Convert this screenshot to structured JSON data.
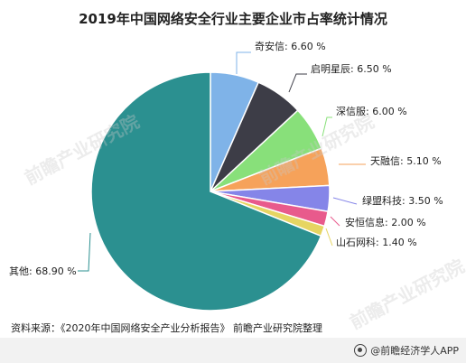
{
  "title": "2019年中国网络安全行业主要企业市占率统计情况",
  "source": "资料来源：《2020年中国网络安全产业分析报告》 前瞻产业研究院整理",
  "brand": "@前瞻经济学人APP",
  "watermark": "前瞻产业研究院",
  "chart_data": {
    "type": "pie",
    "title": "2019年中国网络安全行业主要企业市占率统计情况",
    "unit": "%",
    "slices": [
      {
        "label": "奇安信",
        "value": 6.6,
        "text": "奇安信: 6.60 %",
        "color": "#7fb3e8"
      },
      {
        "label": "启明星辰",
        "value": 6.5,
        "text": "启明星辰: 6.50 %",
        "color": "#3d3d47"
      },
      {
        "label": "深信服",
        "value": 6.0,
        "text": "深信服: 6.00 %",
        "color": "#88e07a"
      },
      {
        "label": "天融信",
        "value": 5.1,
        "text": "天融信: 5.10 %",
        "color": "#f6a25a"
      },
      {
        "label": "绿盟科技",
        "value": 3.5,
        "text": "绿盟科技: 3.50 %",
        "color": "#8585e8"
      },
      {
        "label": "安恒信息",
        "value": 2.0,
        "text": "安恒信息: 2.00 %",
        "color": "#e85a8c"
      },
      {
        "label": "山石网科",
        "value": 1.4,
        "text": "山石网科: 1.40 %",
        "color": "#e6d562"
      },
      {
        "label": "其他",
        "value": 68.9,
        "text": "其他: 68.90 %",
        "color": "#2b9090"
      }
    ]
  }
}
